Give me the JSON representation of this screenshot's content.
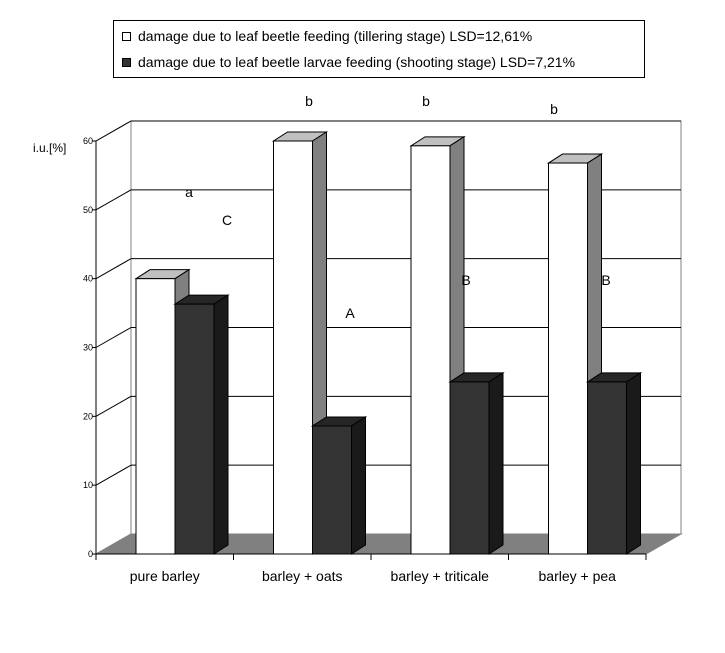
{
  "chart_data": {
    "type": "bar",
    "ylabel": "i.u.[%]",
    "ylim": [
      0,
      60
    ],
    "yticks": [
      "0",
      "10",
      "20",
      "30",
      "40",
      "50",
      "60"
    ],
    "categories": [
      "pure barley",
      "barley + oats",
      "barley + triticale",
      "barley + pea"
    ],
    "series": [
      {
        "name": "damage due to leaf beetle feeding (tillering stage) LSD=12,61%",
        "color": "#ffffff",
        "values": [
          40,
          60,
          59.3,
          56.8
        ],
        "letters": [
          "a",
          "b",
          "b",
          "b"
        ]
      },
      {
        "name": "damage due to leaf beetle larvae feeding (shooting stage) LSD=7,21%",
        "color": "#333333",
        "values": [
          36.3,
          18.6,
          25,
          25
        ],
        "letters": [
          "C",
          "A",
          "B",
          "B"
        ]
      }
    ],
    "grid": true,
    "legend": "top"
  }
}
